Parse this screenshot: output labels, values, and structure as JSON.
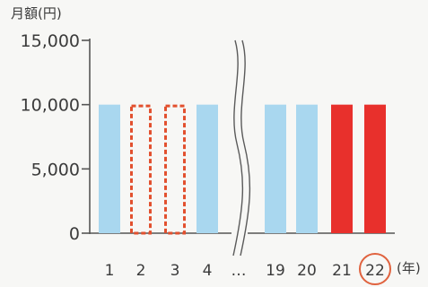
{
  "chart_data": {
    "type": "bar",
    "ylabel": "月額(円)",
    "xlabel": "(年)",
    "ylim": [
      0,
      15000
    ],
    "yticks": [
      "0",
      "5,000",
      "10,000",
      "15,000"
    ],
    "ytick_values": [
      0,
      5000,
      10000,
      15000
    ],
    "categories": [
      "1",
      "2",
      "3",
      "4",
      "…",
      "19",
      "20",
      "21",
      "22"
    ],
    "values": [
      10000,
      10000,
      10000,
      10000,
      null,
      10000,
      10000,
      10000,
      10000
    ],
    "bar_styles": [
      "solid-light-blue",
      "dashed-outline-red",
      "dashed-outline-red",
      "solid-light-blue",
      "axis-break",
      "solid-light-blue",
      "solid-light-blue",
      "solid-red",
      "solid-red"
    ],
    "highlighted_category": "22",
    "axis_break": true,
    "grid": false,
    "colors": {
      "light_blue": "#a9d7ef",
      "red": "#e8302c",
      "dashed_outline": "#e2502e",
      "highlight_circle": "#e0623e",
      "axis": "#555555"
    }
  }
}
